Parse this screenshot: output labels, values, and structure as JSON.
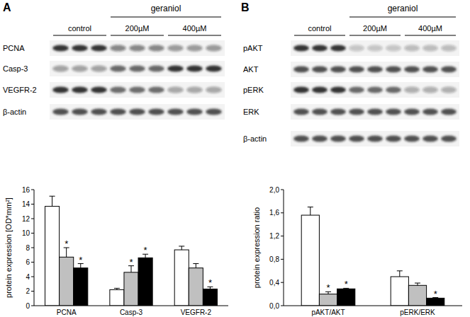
{
  "chart_data": [
    {
      "type": "bar",
      "panel": "A",
      "blot": {
        "title": "geraniol",
        "rows": [
          "PCNA",
          "Casp-3",
          "VEGFR-2",
          "β-actin"
        ]
      },
      "y_label": "protein expression [OD*mm²]",
      "categories": [
        "PCNA",
        "Casp-3",
        "VEGFR-2"
      ],
      "series": [
        {
          "name": "control",
          "color": "#ffffff",
          "values": [
            13.7,
            2.2,
            7.7
          ],
          "errors": [
            1.4,
            0.2,
            0.5
          ],
          "significance": [
            null,
            null,
            null
          ]
        },
        {
          "name": "200µM",
          "color": "#c0c0c0",
          "values": [
            6.7,
            4.6,
            5.2
          ],
          "errors": [
            1.3,
            0.9,
            0.6
          ],
          "significance": [
            "*",
            "*",
            null
          ]
        },
        {
          "name": "400µM",
          "color": "#000000",
          "values": [
            5.2,
            6.6,
            2.3
          ],
          "errors": [
            0.6,
            0.5,
            0.3
          ],
          "significance": [
            "*",
            "*",
            "*"
          ]
        }
      ],
      "ylim": [
        0,
        16
      ],
      "yticks": [
        0,
        2,
        4,
        6,
        8,
        10,
        12,
        14,
        16
      ],
      "grid": false
    },
    {
      "type": "bar",
      "panel": "B",
      "blot": {
        "title": "geraniol",
        "rows": [
          "pAKT",
          "AKT",
          "pERK",
          "ERK",
          "β-actin"
        ]
      },
      "y_label": "protein expression ratio",
      "categories": [
        "pAKT/AKT",
        "pERK/ERK"
      ],
      "series": [
        {
          "name": "control",
          "color": "#ffffff",
          "values": [
            1.56,
            0.5
          ],
          "errors": [
            0.14,
            0.1
          ],
          "significance": [
            null,
            null
          ]
        },
        {
          "name": "200µM",
          "color": "#c0c0c0",
          "values": [
            0.2,
            0.35
          ],
          "errors": [
            0.04,
            0.04
          ],
          "significance": [
            "*",
            null
          ]
        },
        {
          "name": "400µM",
          "color": "#000000",
          "values": [
            0.29,
            0.13
          ],
          "errors": [
            0.01,
            0.01
          ],
          "significance": [
            "*",
            "*"
          ]
        }
      ],
      "ylim": [
        0,
        2.0
      ],
      "yticks": [
        {
          "value": 0,
          "label": "0,0"
        },
        {
          "value": 0.4,
          "label": "0,4"
        },
        {
          "value": 0.8,
          "label": "0,8"
        },
        {
          "value": 1.2,
          "label": "1,2"
        },
        {
          "value": 1.6,
          "label": "1,6"
        },
        {
          "value": 2.0,
          "label": "2,0"
        }
      ],
      "grid": false
    }
  ]
}
